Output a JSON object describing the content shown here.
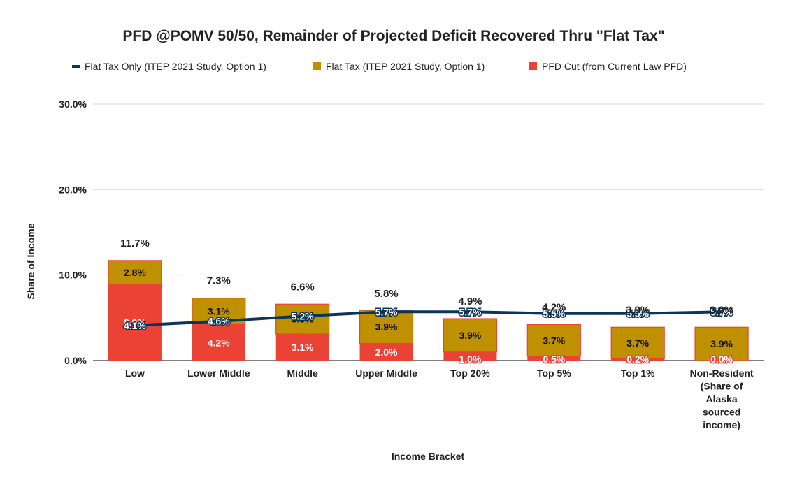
{
  "chart_data": {
    "type": "bar",
    "stacked": true,
    "title": "PFD @POMV 50/50, Remainder of Projected Deficit Recovered Thru \"Flat Tax\"",
    "xlabel": "Income Bracket",
    "ylabel": "Share of Income",
    "ylim": [
      0,
      30
    ],
    "yticks": [
      "0.0%",
      "10.0%",
      "20.0%",
      "30.0%"
    ],
    "ytick_values": [
      0,
      10,
      20,
      30
    ],
    "grid": true,
    "legend_position": "top",
    "categories": [
      [
        "Low"
      ],
      [
        "Lower Middle"
      ],
      [
        "Middle"
      ],
      [
        "Upper Middle"
      ],
      [
        "Top 20%"
      ],
      [
        "Top 5%"
      ],
      [
        "Top 1%"
      ],
      [
        "Non-Resident",
        "(Share of",
        "Alaska",
        "sourced",
        "income)"
      ]
    ],
    "series": [
      {
        "name": "PFD Cut (from Current Law PFD)",
        "kind": "bar",
        "color": "#ea4335",
        "values": [
          8.9,
          4.2,
          3.1,
          2.0,
          1.0,
          0.5,
          0.2,
          0.0
        ],
        "labels": [
          "8.9%",
          "4.2%",
          "3.1%",
          "2.0%",
          "1.0%",
          "0.5%",
          "0.2%",
          "0.0%"
        ]
      },
      {
        "name": "Flat Tax (ITEP 2021 Study, Option 1)",
        "kind": "bar",
        "color": "#bf9000",
        "values": [
          2.8,
          3.1,
          3.5,
          3.9,
          3.9,
          3.7,
          3.7,
          3.9
        ],
        "labels": [
          "2.8%",
          "3.1%",
          "3.5%",
          "3.9%",
          "3.9%",
          "3.7%",
          "3.7%",
          "3.9%"
        ]
      },
      {
        "name": "Flat Tax Only (ITEP 2021 Study, Option 1)",
        "kind": "line",
        "color": "#0b3558",
        "values": [
          4.1,
          4.6,
          5.2,
          5.7,
          5.7,
          5.5,
          5.5,
          5.7
        ],
        "labels": [
          "4.1%",
          "4.6%",
          "5.2%",
          "5.7%",
          "5.7%",
          "5.5%",
          "5.5%",
          "5.7%"
        ]
      }
    ],
    "totals": [
      11.7,
      7.3,
      6.6,
      5.8,
      4.9,
      4.2,
      3.9,
      3.9
    ],
    "total_labels": [
      "11.7%",
      "7.3%",
      "6.6%",
      "5.8%",
      "4.9%",
      "4.2%",
      "3.9%",
      "3.9%"
    ]
  }
}
